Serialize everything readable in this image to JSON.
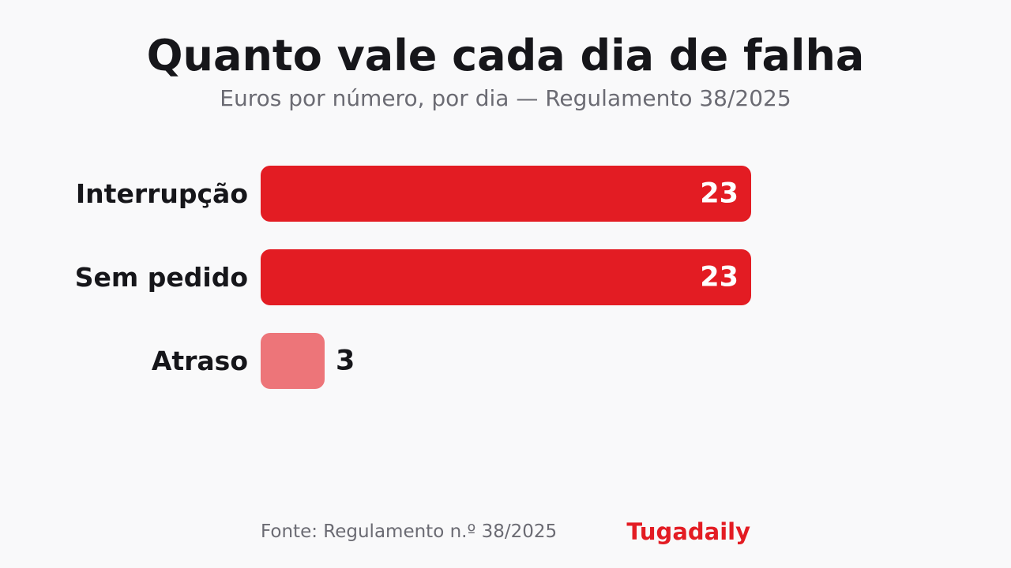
{
  "chart_data": {
    "type": "bar",
    "orientation": "horizontal",
    "title": "Quanto vale cada dia de falha",
    "subtitle": "Euros por número, por dia — Regulamento 38/2025",
    "categories": [
      "Interrupção",
      "Sem pedido",
      "Atraso"
    ],
    "values": [
      23,
      23,
      3
    ],
    "data_labels": [
      "23",
      "23",
      "3"
    ],
    "bar_colors": [
      "#e31c23",
      "#e31c23",
      "#ed7579"
    ],
    "xlim": [
      0,
      23
    ],
    "grid": false,
    "legend": "none"
  },
  "footer": {
    "source": "Fonte: Regulamento n.º 38/2025",
    "brand": "Tugadaily"
  }
}
